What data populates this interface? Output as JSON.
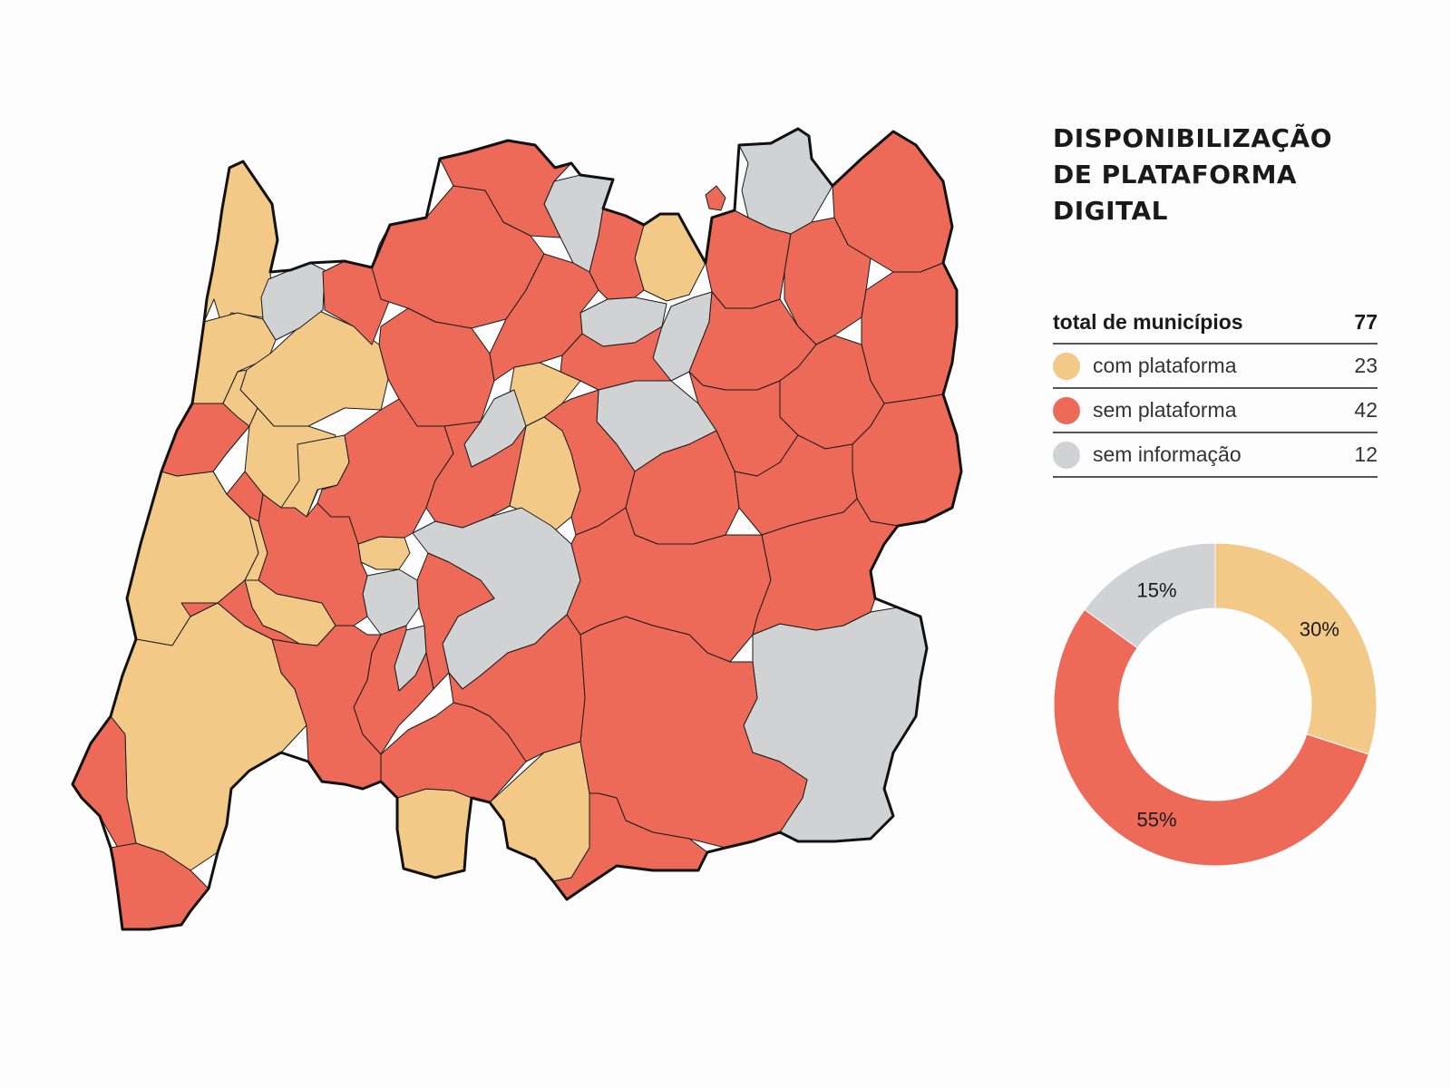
{
  "title_lines": [
    "DISPONIBILIZAÇÃO",
    "DE PLATAFORMA",
    "DIGITAL"
  ],
  "legend": {
    "total_label": "total de municípios",
    "total_value": "77",
    "items": [
      {
        "key": "com",
        "label": "com plataforma",
        "count": "23",
        "color": "#f2c987"
      },
      {
        "key": "sem",
        "label": "sem plataforma",
        "count": "42",
        "color": "#ec6a57"
      },
      {
        "key": "info",
        "label": "sem informação",
        "count": "12",
        "color": "#d1d2d4"
      }
    ]
  },
  "chart_data": {
    "type": "pie",
    "variant": "donut",
    "categories": [
      "com plataforma",
      "sem plataforma",
      "sem informação"
    ],
    "values": [
      30,
      55,
      15
    ],
    "value_labels": [
      "30%",
      "55%",
      "15%"
    ],
    "colors": [
      "#f2c987",
      "#ec6a57",
      "#d1d2d4"
    ]
  },
  "colors": {
    "com": "#f2c987",
    "sem": "#ec6a57",
    "info": "#d1d2d4",
    "border": "#111111"
  }
}
